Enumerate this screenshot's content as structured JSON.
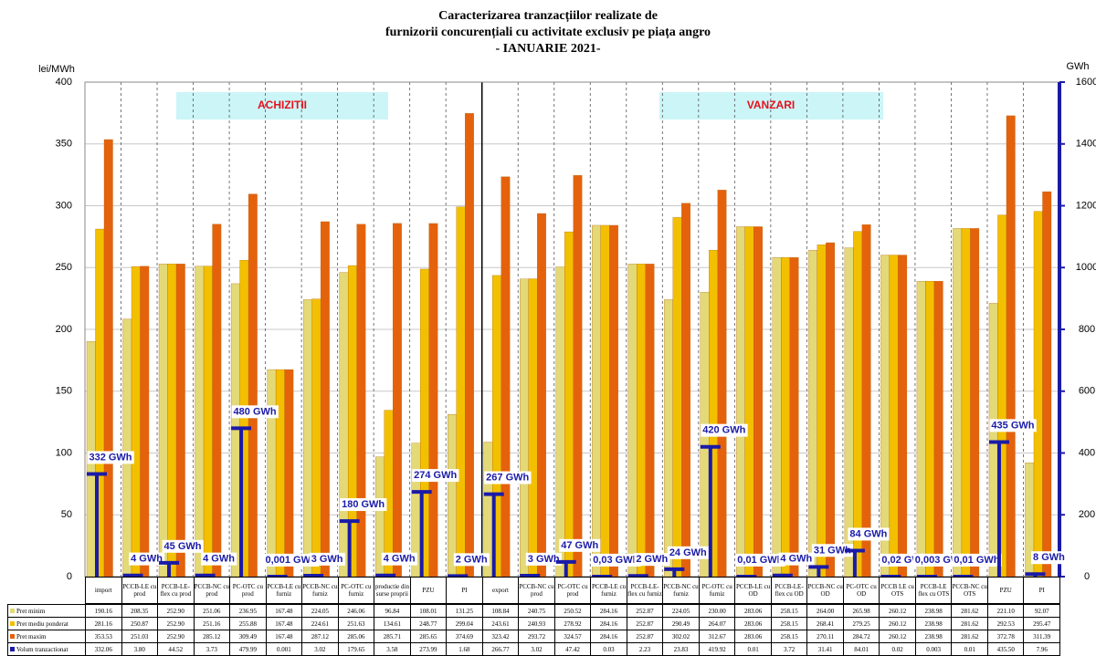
{
  "chart_data": {
    "type": "bar",
    "title": [
      "Caracterizarea tranzacțiilor realizate de",
      "furnizorii concurențiali cu activitate exclusiv pe piața angro",
      "- IANUARIE 2021-"
    ],
    "ylabel": "lei/MWh",
    "y2label": "GWh",
    "annotations": [
      "ACHIZITII",
      "VANZARI"
    ],
    "categories": [
      "import",
      "PCCB-LE cu prod",
      "PCCB-LE-flex cu prod",
      "PCCB-NC cu prod",
      "PC-OTC cu prod",
      "PCCB-LE cu furniz",
      "PCCB-NC cu furniz",
      "PC-OTC cu furniz",
      "productie din surse proprii",
      "PZU",
      "PI",
      "export",
      "PCCB-NC cu prod",
      "PC-OTC cu prod",
      "PCCB-LE cu furniz",
      "PCCB-LE-flex cu furniz",
      "PCCB-NC cu furniz",
      "PC-OTC cu furniz",
      "PCCB-LE cu OD",
      "PCCB-LE-flex cu OD",
      "PCCB-NC cu OD",
      "PC-OTC cu OD",
      "PCCB LE cu OTS",
      "PCCB-LE flex cu OTS",
      "PCCB-NC cu OTS",
      "PZU",
      "PI"
    ],
    "series": [
      {
        "name": "Pret minim",
        "color": "#e3d977",
        "values": [
          190.16,
          208.35,
          252.9,
          251.06,
          236.95,
          167.48,
          224.05,
          246.06,
          96.84,
          108.01,
          131.25,
          108.84,
          240.75,
          250.52,
          284.16,
          252.87,
          224.05,
          230,
          283.06,
          258.15,
          264,
          265.98,
          260.12,
          238.98,
          281.62,
          221.1,
          92.07
        ],
        "table_values": [
          "190.16",
          "208.35",
          "252.90",
          "251.06",
          "236.95",
          "167.48",
          "224.05",
          "246.06",
          "96.84",
          "108.01",
          "131.25",
          "108.84",
          "240.75",
          "250.52",
          "284.16",
          "252.87",
          "224.05",
          "230.00",
          "283.06",
          "258.15",
          "264.00",
          "265.98",
          "260.12",
          "238.98",
          "281.62",
          "221.10",
          "92.07"
        ]
      },
      {
        "name": "Pret mediu ponderat",
        "color": "#f2c000",
        "values": [
          281.16,
          250.87,
          252.9,
          251.16,
          255.88,
          167.48,
          224.61,
          251.63,
          134.61,
          248.77,
          299.04,
          243.61,
          240.93,
          278.92,
          284.16,
          252.87,
          290.49,
          264.07,
          283.06,
          258.15,
          268.41,
          279.25,
          260.12,
          238.98,
          281.62,
          292.53,
          295.47
        ],
        "table_values": [
          "281.16",
          "250.87",
          "252.90",
          "251.16",
          "255.88",
          "167.48",
          "224.61",
          "251.63",
          "134.61",
          "248.77",
          "299.04",
          "243.61",
          "240.93",
          "278.92",
          "284.16",
          "252.87",
          "290.49",
          "264.07",
          "283.06",
          "258.15",
          "268.41",
          "279.25",
          "260.12",
          "238.98",
          "281.62",
          "292.53",
          "295.47"
        ]
      },
      {
        "name": "Pret maxim",
        "color": "#e5620c",
        "values": [
          353.53,
          251.03,
          252.9,
          285.12,
          309.49,
          167.48,
          287.12,
          285.06,
          285.71,
          285.65,
          374.69,
          323.42,
          293.72,
          324.57,
          284.16,
          252.87,
          302.02,
          312.67,
          283.06,
          258.15,
          270.11,
          284.72,
          260.12,
          238.98,
          281.62,
          372.78,
          311.39
        ],
        "table_values": [
          "353.53",
          "251.03",
          "252.90",
          "285.12",
          "309.49",
          "167.48",
          "287.12",
          "285.06",
          "285.71",
          "285.65",
          "374.69",
          "323.42",
          "293.72",
          "324.57",
          "284.16",
          "252.87",
          "302.02",
          "312.67",
          "283.06",
          "258.15",
          "270.11",
          "284.72",
          "260.12",
          "238.98",
          "281.62",
          "372.78",
          "311.39"
        ]
      },
      {
        "name": "Volum tranzactionat",
        "color": "#1a1aa8",
        "axis": "y2",
        "values": [
          332.06,
          3.8,
          44.52,
          3.73,
          479.99,
          0.001,
          3.02,
          179.65,
          3.58,
          273.99,
          1.68,
          266.77,
          3.02,
          47.42,
          0.03,
          2.23,
          23.83,
          419.92,
          0.01,
          3.72,
          31.41,
          84.01,
          0.02,
          0.003,
          0.01,
          435.5,
          7.96
        ],
        "value_labels": [
          "332 GWh",
          "4 GWh",
          "45 GWh",
          "4 GWh",
          "480 GWh",
          "0,001 GWh",
          "3 GWh",
          "180 GWh",
          "4 GWh",
          "274 GWh",
          "2 GWh",
          "267 GWh",
          "3 GWh",
          "47 GWh",
          "0,03 GWh",
          "2 GWh",
          "24 GWh",
          "420 GWh",
          "0,01 GWh",
          "4 GWh",
          "31 GWh",
          "84 GWh",
          "0,02 GWh",
          "0,003 GWh",
          "0,01 GWh",
          "435 GWh",
          "8 GWh"
        ],
        "table_values": [
          "332.06",
          "3.80",
          "44.52",
          "3.73",
          "479.99",
          "0.001",
          "3.02",
          "179.65",
          "3.58",
          "273.99",
          "1.68",
          "266.77",
          "3.02",
          "47.42",
          "0.03",
          "2.23",
          "23.83",
          "419.92",
          "0.01",
          "3.72",
          "31.41",
          "84.01",
          "0.02",
          "0.003",
          "0.01",
          "435.50",
          "7.96"
        ]
      }
    ],
    "ylim": [
      0,
      400
    ],
    "yticks": [
      0,
      50,
      100,
      150,
      200,
      250,
      300,
      350,
      400
    ],
    "y2lim": [
      0,
      1600
    ],
    "y2ticks": [
      0,
      200,
      400,
      600,
      800,
      1000,
      1200,
      1400,
      1600
    ],
    "grid": true
  }
}
